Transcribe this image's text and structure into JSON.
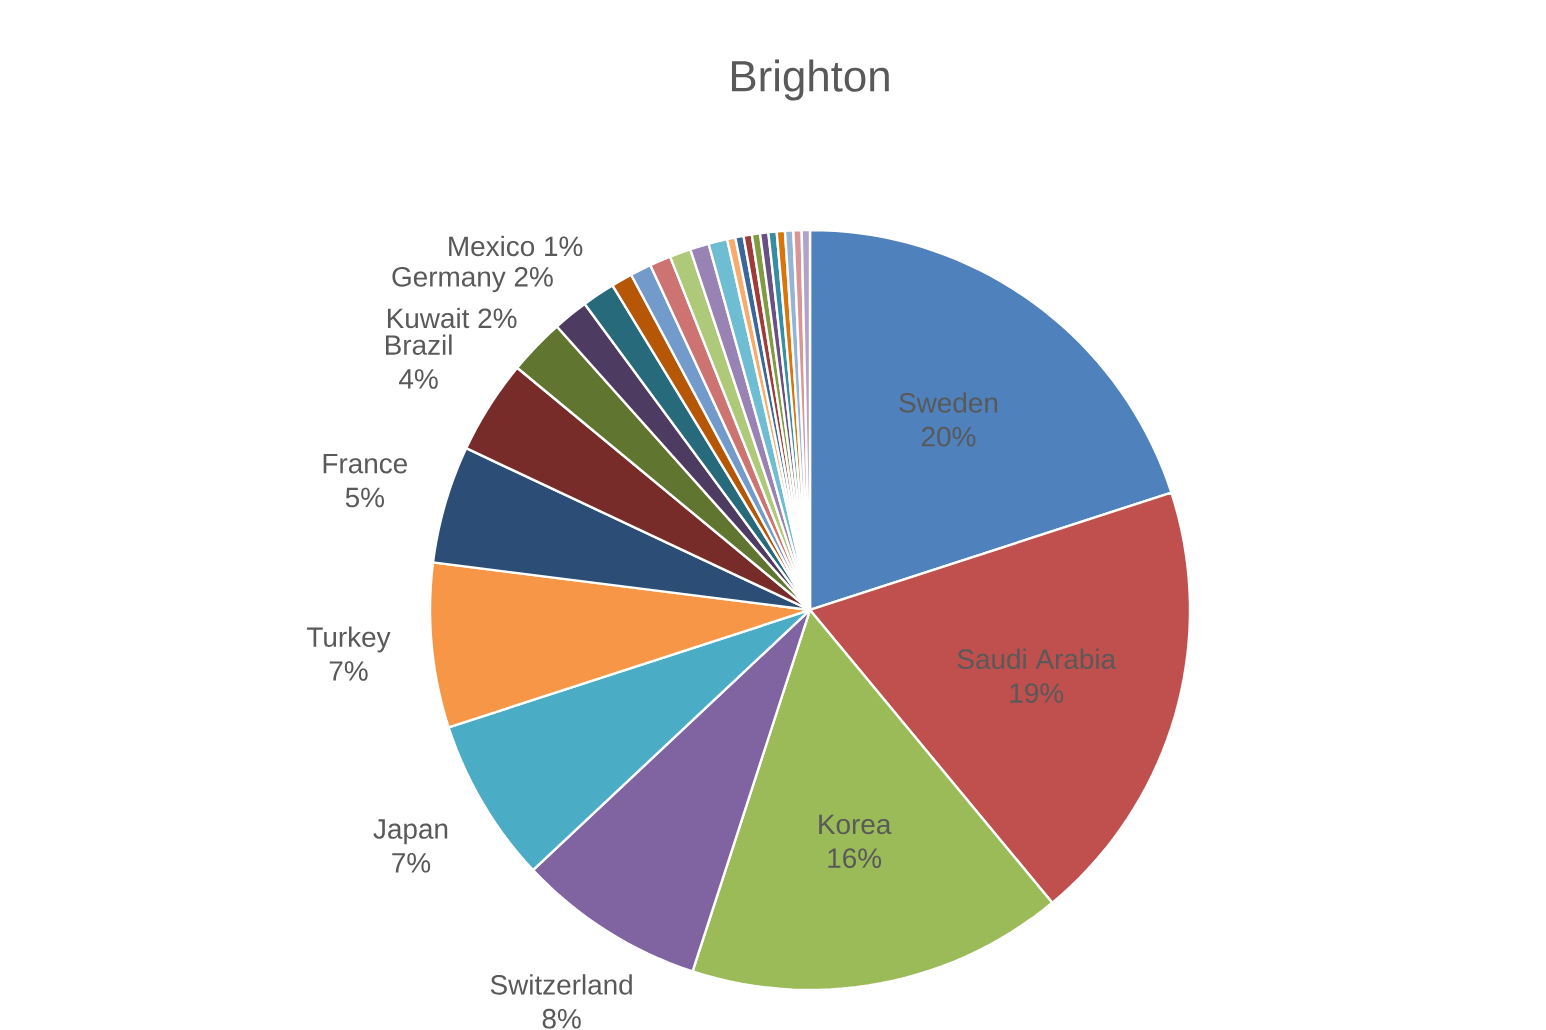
{
  "chart_data": {
    "type": "pie",
    "title": "Brighton",
    "categories": [
      "Sweden",
      "Saudi Arabia",
      "Korea",
      "Switzerland",
      "Japan",
      "Turkey",
      "France",
      "Brazil",
      "Kuwait",
      "Germany",
      "Mexico",
      null,
      null,
      null,
      null,
      null,
      null,
      null,
      null,
      null,
      null,
      null,
      null,
      null,
      null,
      null,
      null
    ],
    "values": [
      20,
      19,
      16,
      8,
      7,
      7,
      5,
      4,
      2.4,
      1.5,
      1.4,
      0.9,
      0.9,
      0.9,
      0.9,
      0.8,
      0.8,
      0.35,
      0.35,
      0.35,
      0.35,
      0.35,
      0.35,
      0.35,
      0.35,
      0.35,
      0.35
    ],
    "value_labels": [
      "20%",
      "19%",
      "16%",
      "8%",
      "7%",
      "7%",
      "5%",
      "4%",
      "2%",
      "2%",
      "1%",
      null,
      null,
      null,
      null,
      null,
      null,
      null,
      null,
      null,
      null,
      null,
      null,
      null,
      null,
      null,
      null
    ],
    "colors": [
      "#4f81bd",
      "#c0504d",
      "#9bbb59",
      "#8064a2",
      "#4bacc6",
      "#f79646",
      "#2c4d75",
      "#772c2a",
      "#5f7530",
      "#4d3b62",
      "#276a7c",
      "#b65708",
      "#729aca",
      "#cd7371",
      "#afc97a",
      "#9983b5",
      "#6fbdd3",
      "#f9ab6b",
      "#3a679c",
      "#9f3b38",
      "#7f9c40",
      "#6a5183",
      "#358ea6",
      "#db7509",
      "#95b3d7",
      "#d99694",
      "#b3a2c7"
    ]
  }
}
